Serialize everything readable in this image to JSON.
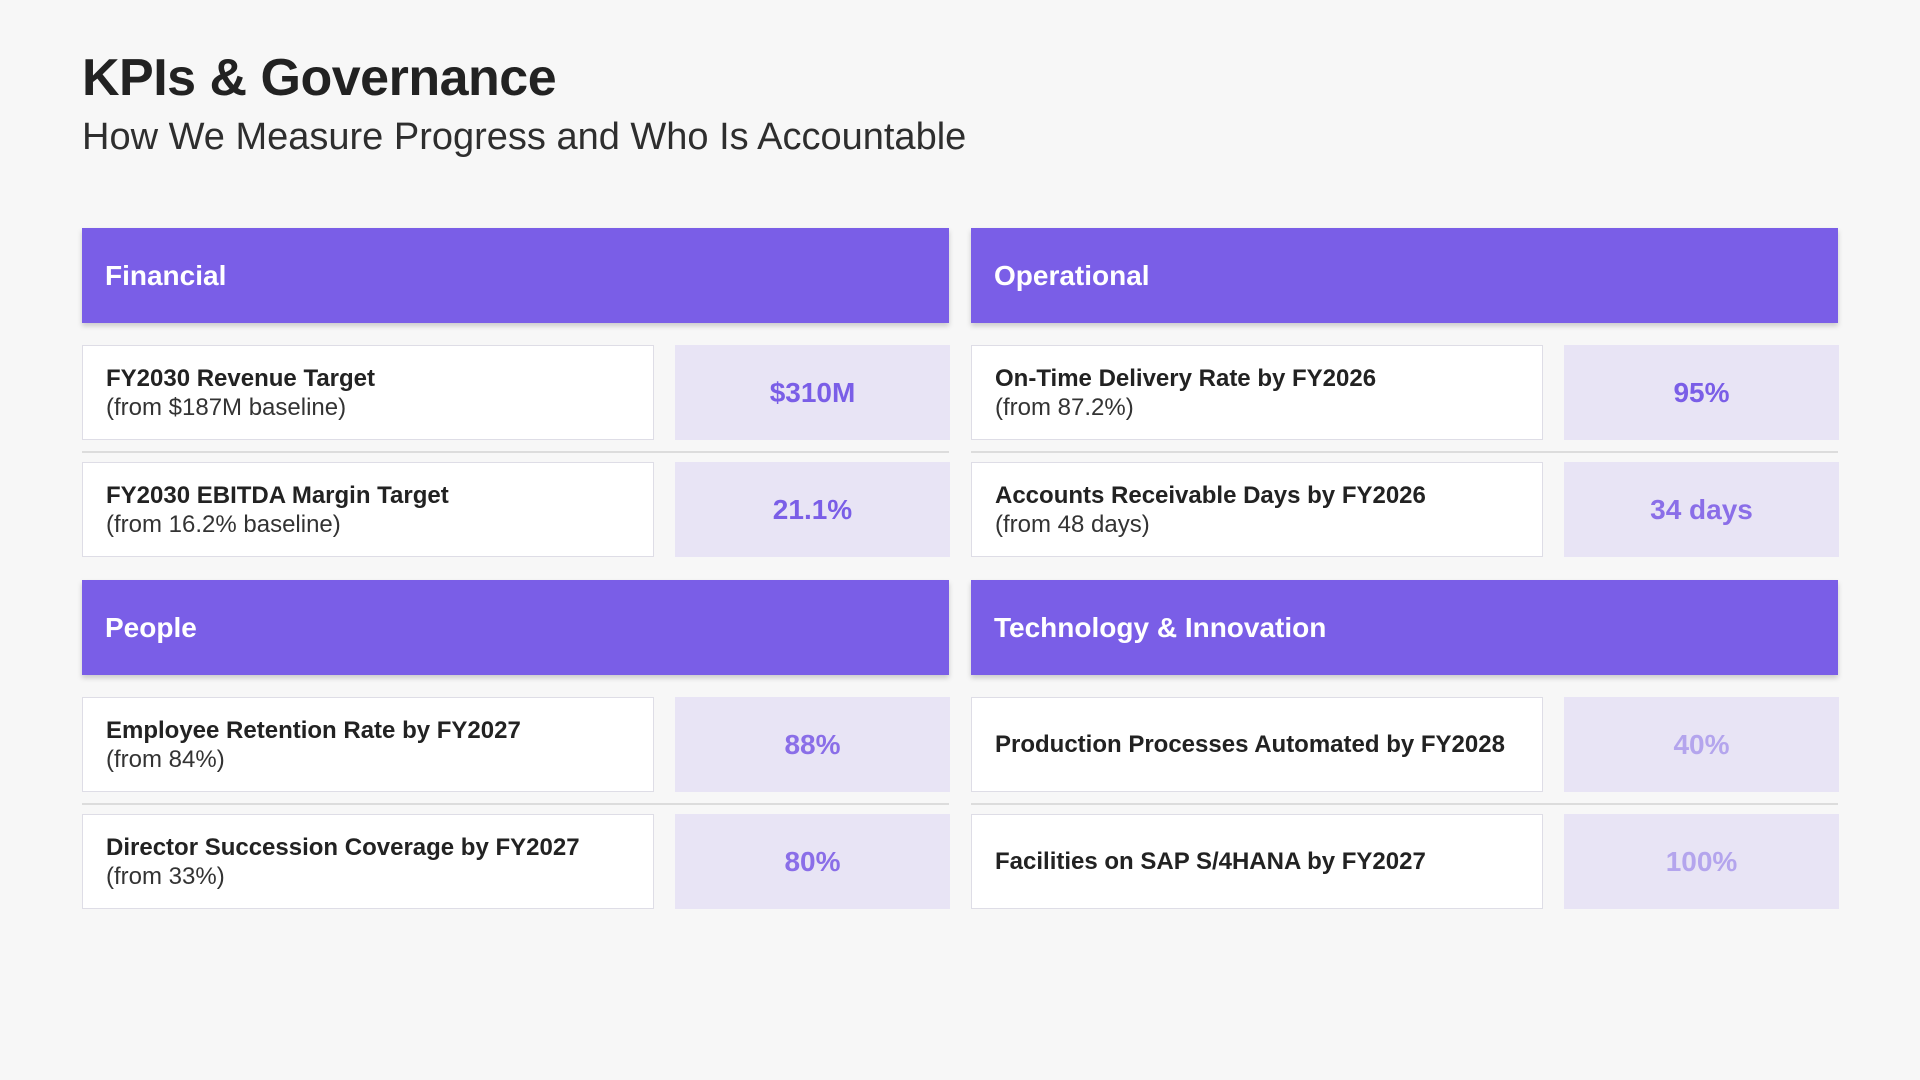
{
  "slide": {
    "title": "KPIs & Governance",
    "subtitle": "How We Measure Progress and Who Is Accountable"
  },
  "colors": {
    "header": "#7a5ee7",
    "value_bg": "#e8e4f5",
    "value_strong": "#7a5ee7",
    "value_medium": "#9077e6",
    "value_light": "#b4a5ed"
  },
  "sections": [
    {
      "name": "Financial",
      "kpis": [
        {
          "label": "FY2030 Revenue Target",
          "sub": "(from $187M baseline)",
          "value": "$310M"
        },
        {
          "label": "FY2030 EBITDA Margin Target",
          "sub": "(from 16.2% baseline)",
          "value": "21.1%"
        }
      ]
    },
    {
      "name": "Operational",
      "kpis": [
        {
          "label": "On-Time Delivery Rate by FY2026",
          "sub": "(from 87.2%)",
          "value": "95%"
        },
        {
          "label": "Accounts Receivable Days by FY2026",
          "sub": "(from 48 days)",
          "value": "34 days"
        }
      ]
    },
    {
      "name": "People",
      "kpis": [
        {
          "label": "Employee Retention Rate by FY2027",
          "sub": "(from 84%)",
          "value": "88%"
        },
        {
          "label": "Director Succession Coverage by FY2027",
          "sub": "(from 33%)",
          "value": "80%"
        }
      ]
    },
    {
      "name": "Technology & Innovation",
      "kpis": [
        {
          "label": "Production Processes Automated by FY2028",
          "sub": "",
          "value": "40%"
        },
        {
          "label": "Facilities on SAP S/4HANA by FY2027",
          "sub": "",
          "value": "100%"
        }
      ]
    }
  ]
}
